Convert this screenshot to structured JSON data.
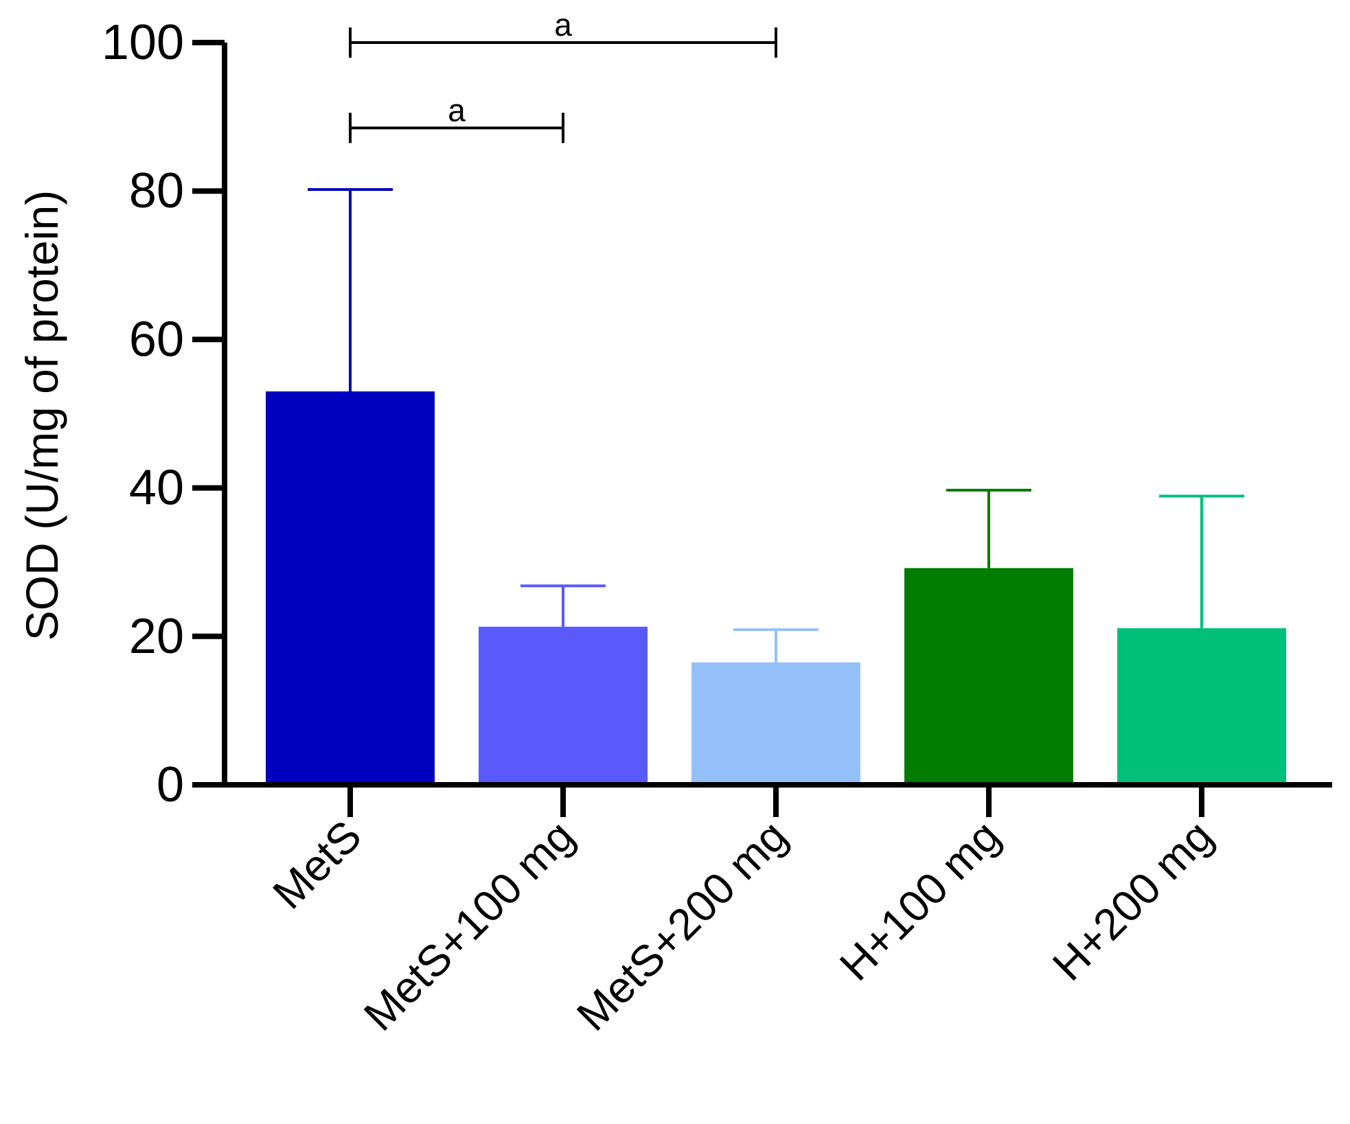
{
  "chart_data": {
    "type": "bar",
    "title": "",
    "xlabel": "",
    "ylabel": "SOD (U/mg of protein)",
    "ylim": [
      0,
      100
    ],
    "yticks": [
      0,
      20,
      40,
      60,
      80,
      100
    ],
    "categories": [
      "MetS",
      "MetS+100 mg",
      "MetS+200 mg",
      "H+100 mg",
      "H+200 mg"
    ],
    "values": [
      53,
      21.3,
      16.5,
      29.2,
      21.1
    ],
    "error_upper": [
      80.2,
      26.8,
      20.9,
      39.7,
      38.9
    ],
    "colors": [
      "#0000c0",
      "#5a5afb",
      "#94c0fa",
      "#007c00",
      "#00c07a"
    ],
    "significance": [
      {
        "from": 0,
        "to": 2,
        "label": "a",
        "y": 100
      },
      {
        "from": 0,
        "to": 1,
        "label": "a",
        "y": 88.5
      }
    ]
  }
}
